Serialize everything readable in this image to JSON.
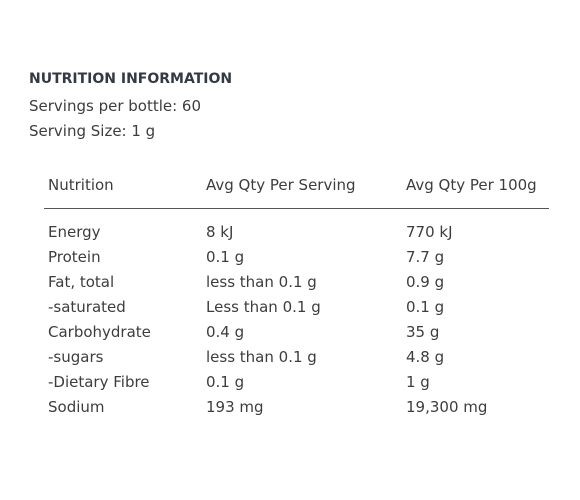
{
  "header": {
    "title": "NUTRITION INFORMATION",
    "servings": "Servings per bottle: 60",
    "serving_size": "Serving Size: 1 g"
  },
  "table": {
    "columns": [
      "Nutrition",
      "Avg Qty Per Serving",
      "Avg Qty Per 100g"
    ],
    "rows": [
      [
        "Energy",
        "8 kJ",
        "770 kJ"
      ],
      [
        "Protein",
        "0.1 g",
        "7.7 g"
      ],
      [
        "Fat, total",
        "less than 0.1 g",
        "0.9 g"
      ],
      [
        "-saturated",
        "Less than 0.1 g",
        "0.1 g"
      ],
      [
        "Carbohydrate",
        "0.4 g",
        "35 g"
      ],
      [
        "-sugars",
        "less than 0.1 g",
        "4.8 g"
      ],
      [
        "-Dietary Fibre",
        "0.1 g",
        "1 g"
      ],
      [
        "Sodium",
        "193 mg",
        "19,300 mg"
      ]
    ]
  }
}
